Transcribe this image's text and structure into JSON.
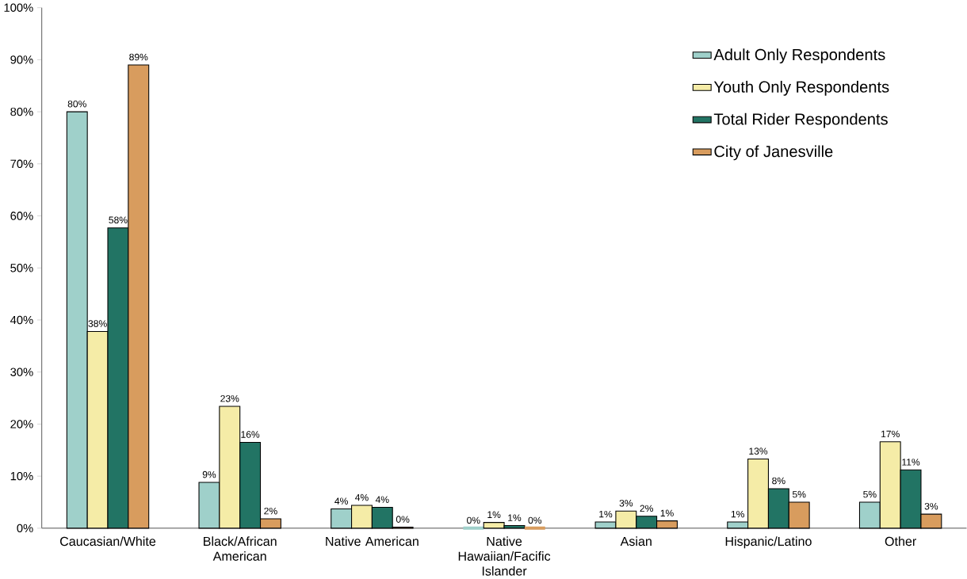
{
  "chart_data": {
    "type": "bar",
    "categories": [
      "Caucasian/White",
      "Black/African American",
      "Native American",
      "Native Hawaiian/Facific Islander",
      "Asian",
      "Hispanic/Latino",
      "Other"
    ],
    "series": [
      {
        "name": "Adult Only Respondents",
        "color": "#9fd0ca",
        "values": [
          80.0,
          8.8,
          3.7,
          0.0,
          1.2,
          1.2,
          5.0
        ],
        "value_labels": [
          "80%",
          "9%",
          "4%",
          "0%",
          "1%",
          "1%",
          "5%"
        ]
      },
      {
        "name": "Youth Only Respondents",
        "color": "#f5eca7",
        "values": [
          37.8,
          23.4,
          4.4,
          1.1,
          3.3,
          13.3,
          16.6
        ],
        "value_labels": [
          "38%",
          "23%",
          "4%",
          "1%",
          "3%",
          "13%",
          "17%"
        ]
      },
      {
        "name": "Total Rider Respondents",
        "color": "#227464",
        "values": [
          57.7,
          16.5,
          4.0,
          0.5,
          2.3,
          7.6,
          11.2
        ],
        "value_labels": [
          "58%",
          "16%",
          "4%",
          "1%",
          "2%",
          "8%",
          "11%"
        ]
      },
      {
        "name": "City of Janesville",
        "color": "#d89c5e",
        "values": [
          89.0,
          1.8,
          0.2,
          0.0,
          1.4,
          5.0,
          2.7
        ],
        "value_labels": [
          "89%",
          "2%",
          "0%",
          "0%",
          "1%",
          "5%",
          "3%"
        ]
      }
    ],
    "ylim": [
      0,
      100
    ],
    "yticks": [
      {
        "value": 0,
        "label": "0%"
      },
      {
        "value": 10,
        "label": "10%"
      },
      {
        "value": 20,
        "label": "20%"
      },
      {
        "value": 30,
        "label": "30%"
      },
      {
        "value": 40,
        "label": "40%"
      },
      {
        "value": 50,
        "label": "50%"
      },
      {
        "value": 60,
        "label": "60%"
      },
      {
        "value": 70,
        "label": "70%"
      },
      {
        "value": 80,
        "label": "80%"
      },
      {
        "value": 90,
        "label": "90%"
      },
      {
        "value": 100,
        "label": "100%"
      }
    ],
    "grid": false,
    "legend": "top right"
  }
}
